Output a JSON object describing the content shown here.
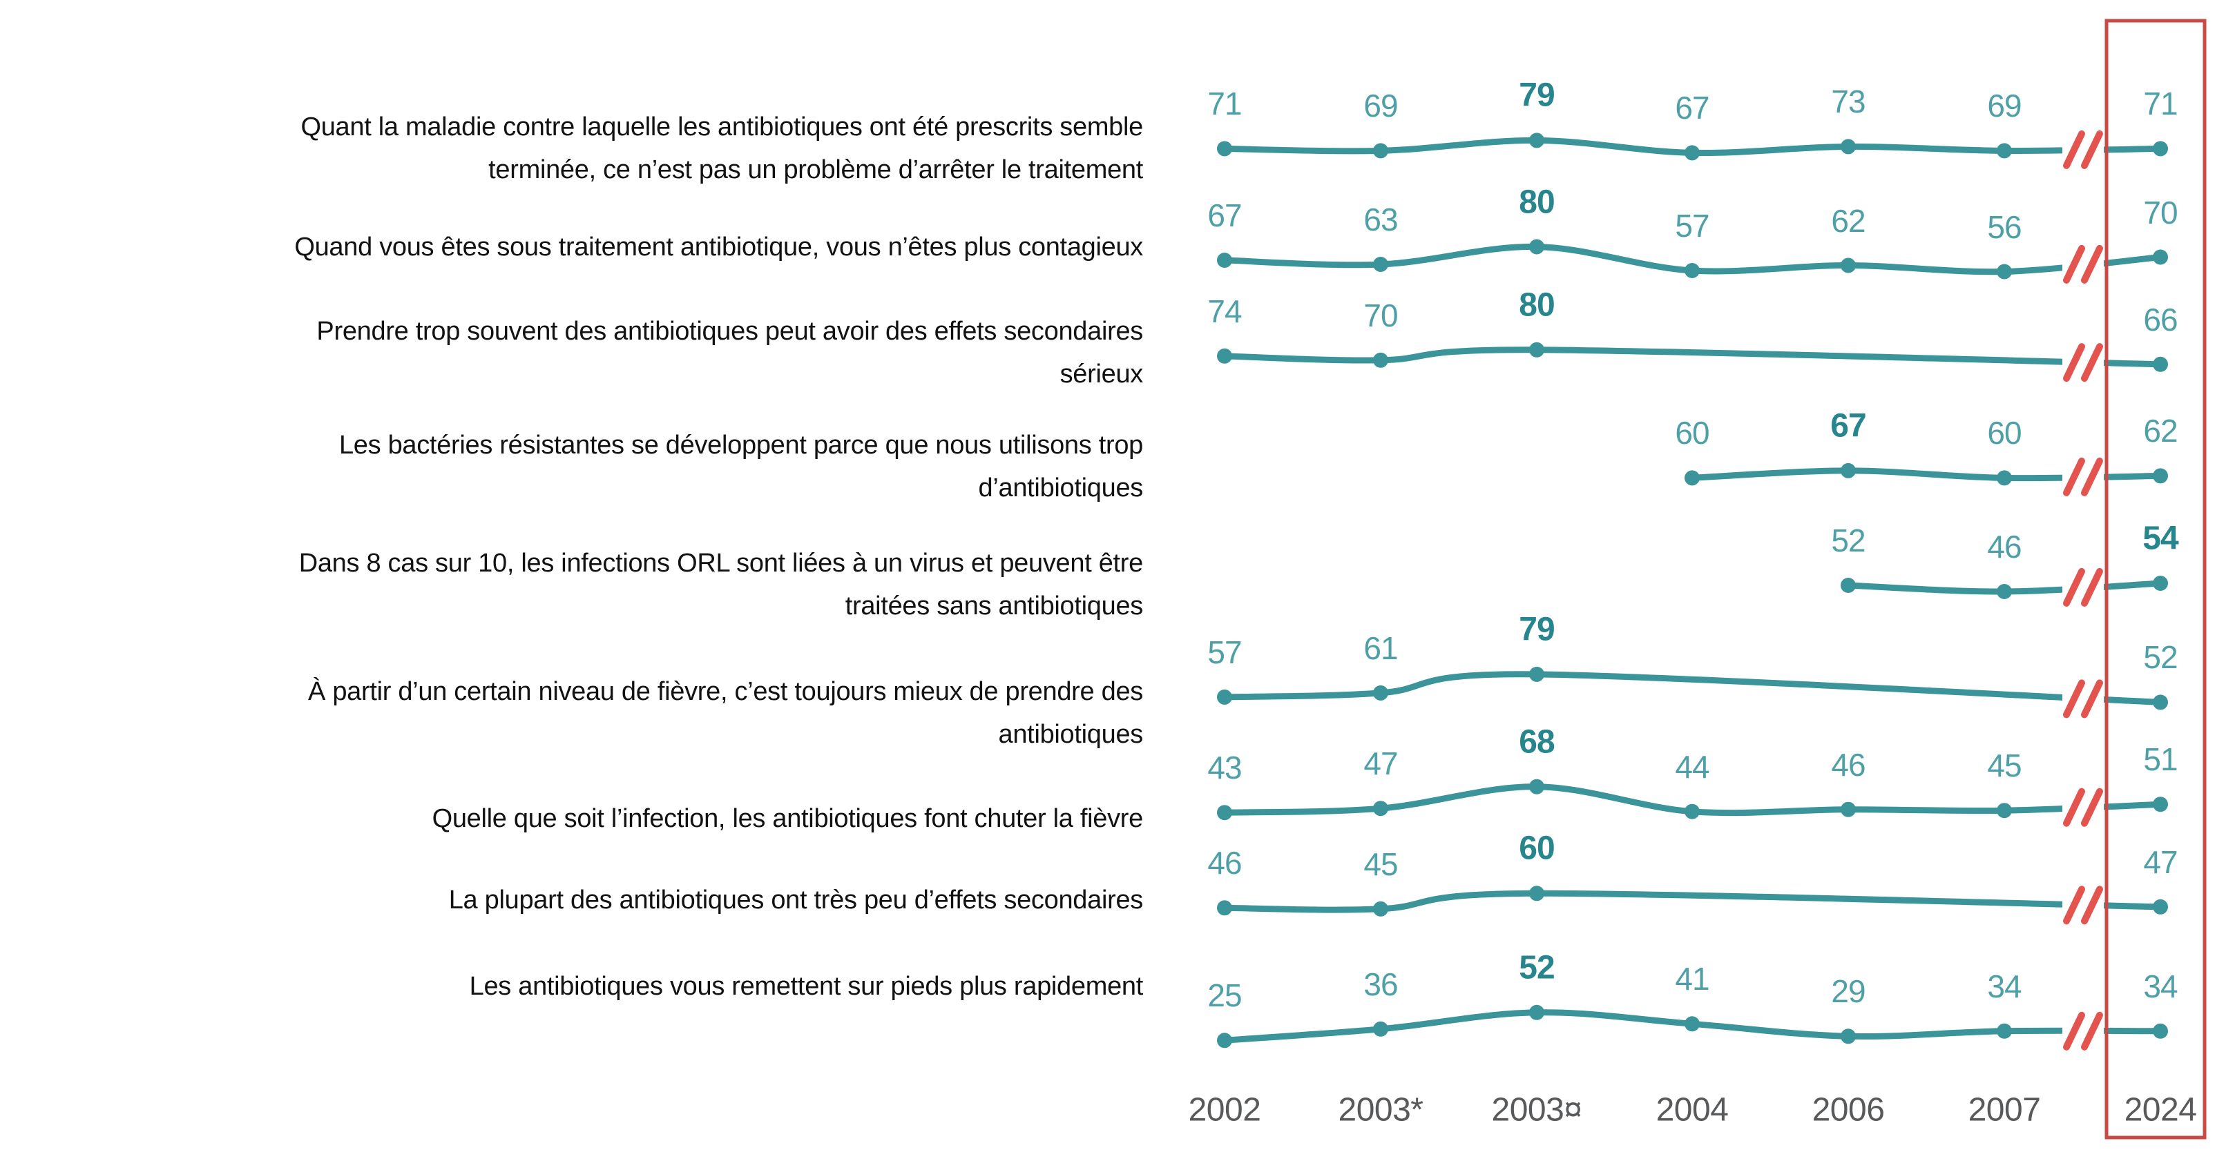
{
  "chart_data": {
    "type": "line",
    "x_labels": [
      "2002",
      "2003*",
      "2003¤",
      "2004",
      "2006",
      "2007",
      "2024"
    ],
    "x_axis_break": {
      "between": [
        "2007",
        "2024"
      ],
      "symbol": "//"
    },
    "highlight_column": "2024",
    "highlight_column_index": 6,
    "rows": [
      {
        "label": "Quant la maladie contre laquelle les antibiotiques ont été prescrits semble\nterminée, ce n’est pas un problème d’arrêter le traitement",
        "values": [
          71,
          69,
          79,
          67,
          73,
          69,
          71
        ],
        "bold_index": 2
      },
      {
        "label": "Quand vous êtes sous traitement antibiotique, vous n’êtes plus contagieux",
        "values": [
          67,
          63,
          80,
          57,
          62,
          56,
          70
        ],
        "bold_index": 2
      },
      {
        "label": "Prendre trop souvent des antibiotiques peut avoir des effets secondaires\nsérieux",
        "values": [
          74,
          70,
          80,
          null,
          null,
          null,
          66
        ],
        "bold_index": 2
      },
      {
        "label": "Les bactéries résistantes se développent parce que nous utilisons trop\nd’antibiotiques",
        "values": [
          null,
          null,
          null,
          60,
          67,
          60,
          62
        ],
        "bold_index": 4
      },
      {
        "label": "Dans 8 cas sur 10, les infections ORL sont liées à un virus et peuvent être\ntraitées sans antibiotiques",
        "values": [
          null,
          null,
          null,
          null,
          52,
          46,
          54
        ],
        "bold_index": 6
      },
      {
        "label": "À partir d’un certain niveau de fièvre, c’est toujours mieux de prendre des\nantibiotiques",
        "values": [
          57,
          61,
          79,
          null,
          null,
          null,
          52
        ],
        "bold_index": 2
      },
      {
        "label": "Quelle que soit l’infection, les antibiotiques font chuter la fièvre",
        "values": [
          43,
          47,
          68,
          44,
          46,
          45,
          51
        ],
        "bold_index": 2
      },
      {
        "label": "La plupart des antibiotiques ont très peu d’effets secondaires",
        "values": [
          46,
          45,
          60,
          null,
          null,
          null,
          47
        ],
        "bold_index": 2
      },
      {
        "label": "Les antibiotiques vous remettent sur pieds plus rapidement",
        "values": [
          25,
          36,
          52,
          41,
          29,
          34,
          34
        ],
        "bold_index": 2
      }
    ],
    "colors": {
      "line": "#3A949A",
      "value_label": "#4FA0A6",
      "value_label_bold": "#27858D",
      "axis_label": "#58595B",
      "break_mark": "#E3544F",
      "highlight_box": "#C94944"
    },
    "grid": false,
    "legend": false,
    "value_labels_shown": true
  }
}
